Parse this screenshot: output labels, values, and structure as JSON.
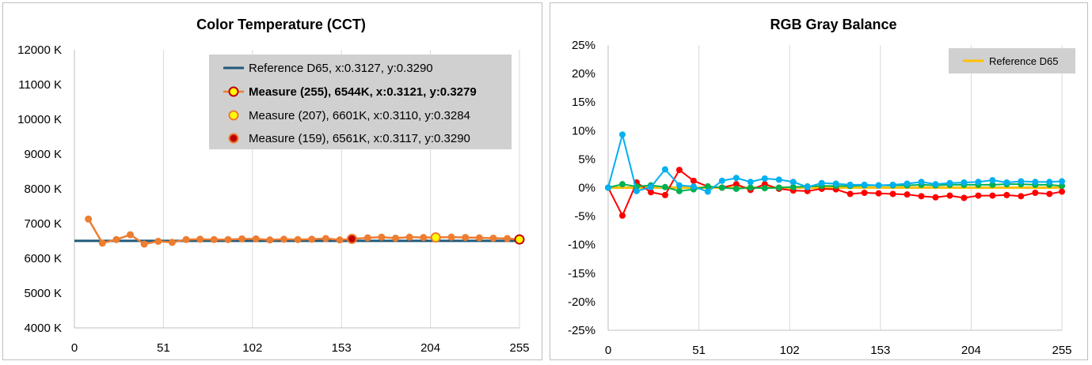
{
  "chart_data": [
    {
      "type": "line",
      "title": "Color Temperature (CCT)",
      "xlabel": "",
      "ylabel": "",
      "xlim": [
        0,
        255
      ],
      "ylim": [
        4000,
        12000
      ],
      "x_ticks": [
        "0",
        "51",
        "102",
        "153",
        "204",
        "255"
      ],
      "y_ticks": [
        "12000 K",
        "11000 K",
        "10000 K",
        "9000 K",
        "8000 K",
        "7000 K",
        "6000 K",
        "5000 K",
        "4000 K"
      ],
      "grid": "vertical",
      "legend_position": "top-right",
      "legend": [
        "Reference D65, x:0.3127, y:0.3290",
        "Measure (255), 6544K, x:0.3121, y:0.3279",
        "Measure (207), 6601K, x:0.3110, y:0.3284",
        "Measure (159), 6561K, x:0.3117, y:0.3290"
      ],
      "series": [
        {
          "name": "Reference D65, x:0.3127, y:0.3290",
          "color": "#1f5a7a",
          "x": [
            0,
            255
          ],
          "y": [
            6504,
            6504
          ]
        },
        {
          "name": "CCT",
          "color": "#ed7d31",
          "x": [
            8,
            16,
            24,
            32,
            40,
            48,
            56,
            64,
            72,
            80,
            88,
            96,
            104,
            112,
            120,
            128,
            136,
            144,
            152,
            160,
            168,
            176,
            184,
            192,
            200,
            208,
            216,
            224,
            232,
            240,
            248,
            255
          ],
          "y": [
            7130,
            6440,
            6540,
            6680,
            6410,
            6490,
            6460,
            6540,
            6550,
            6540,
            6540,
            6560,
            6560,
            6530,
            6550,
            6540,
            6550,
            6570,
            6530,
            6561,
            6590,
            6610,
            6580,
            6610,
            6600,
            6601,
            6610,
            6600,
            6590,
            6580,
            6570,
            6544
          ]
        }
      ],
      "highlights": [
        {
          "x": 255,
          "y": 6544,
          "fill": "#ffff00",
          "stroke": "#c00000"
        },
        {
          "x": 207,
          "y": 6601,
          "fill": "#ffff00",
          "stroke": "#ed7d31"
        },
        {
          "x": 159,
          "y": 6561,
          "fill": "#c00000",
          "stroke": "#ed7d31"
        }
      ]
    },
    {
      "type": "line",
      "title": "RGB Gray Balance",
      "xlabel": "",
      "ylabel": "",
      "xlim": [
        0,
        255
      ],
      "ylim": [
        -25,
        25
      ],
      "x_ticks": [
        "0",
        "51",
        "102",
        "153",
        "204",
        "255"
      ],
      "y_ticks": [
        "25%",
        "20%",
        "15%",
        "10%",
        "5%",
        "0%",
        "-5%",
        "-10%",
        "-15%",
        "-20%",
        "-25%"
      ],
      "grid": "vertical",
      "legend_position": "top-right",
      "legend": [
        "Reference D65"
      ],
      "series": [
        {
          "name": "Reference D65",
          "color": "#ffc000",
          "x": [
            0,
            255
          ],
          "y": [
            0,
            0
          ]
        },
        {
          "name": "Red",
          "color": "#ff0000",
          "x": [
            0,
            8,
            16,
            24,
            32,
            40,
            48,
            56,
            64,
            72,
            80,
            88,
            96,
            104,
            112,
            120,
            128,
            136,
            144,
            152,
            160,
            168,
            176,
            184,
            192,
            200,
            208,
            216,
            224,
            232,
            240,
            248,
            255
          ],
          "y": [
            0,
            -4.9,
            0.9,
            -0.8,
            -1.3,
            3.1,
            1.2,
            0.2,
            0,
            0.6,
            -0.4,
            0.6,
            -0.2,
            -0.5,
            -0.6,
            -0.2,
            -0.3,
            -1.1,
            -0.9,
            -1.0,
            -1.1,
            -1.2,
            -1.5,
            -1.7,
            -1.4,
            -1.8,
            -1.4,
            -1.4,
            -1.3,
            -1.5,
            -0.9,
            -1.1,
            -0.7
          ]
        },
        {
          "name": "Green",
          "color": "#00b050",
          "x": [
            0,
            8,
            16,
            24,
            32,
            40,
            48,
            56,
            64,
            72,
            80,
            88,
            96,
            104,
            112,
            120,
            128,
            136,
            144,
            152,
            160,
            168,
            176,
            184,
            192,
            200,
            208,
            216,
            224,
            232,
            240,
            248,
            255
          ],
          "y": [
            0,
            0.6,
            0.2,
            0.4,
            0.1,
            -0.6,
            -0.3,
            0.2,
            0,
            -0.2,
            0,
            -0.1,
            0,
            0.1,
            0.2,
            0.3,
            0.3,
            0.3,
            0.4,
            0.4,
            0.4,
            0.4,
            0.5,
            0.4,
            0.5,
            0.5,
            0.5,
            0.5,
            0.6,
            0.6,
            0.5,
            0.5,
            0.3
          ]
        },
        {
          "name": "Blue",
          "color": "#00b0f0",
          "x": [
            0,
            8,
            16,
            24,
            32,
            40,
            48,
            56,
            64,
            72,
            80,
            88,
            96,
            104,
            112,
            120,
            128,
            136,
            144,
            152,
            160,
            168,
            176,
            184,
            192,
            200,
            208,
            216,
            224,
            232,
            240,
            248,
            255
          ],
          "y": [
            0,
            9.3,
            -0.6,
            0.1,
            3.2,
            0.4,
            0.2,
            -0.7,
            1.2,
            1.7,
            1.0,
            1.6,
            1.4,
            1.0,
            0.1,
            0.8,
            0.7,
            0.5,
            0.5,
            0.4,
            0.5,
            0.7,
            1.0,
            0.6,
            0.8,
            0.9,
            1.0,
            1.3,
            0.9,
            1.1,
            1.0,
            1.0,
            1.1
          ]
        }
      ]
    }
  ]
}
